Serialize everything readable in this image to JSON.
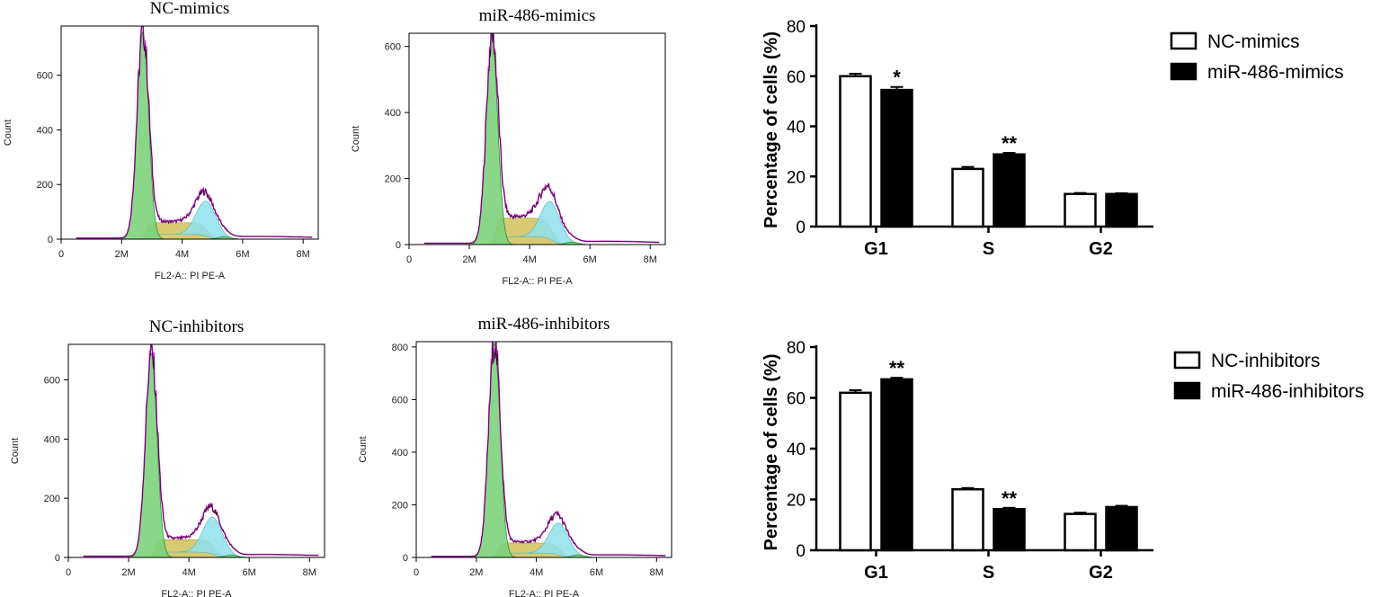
{
  "chart_data": [
    {
      "type": "histogram",
      "title": "NC-mimics",
      "xlabel": "FL2-A:: PI PE-A",
      "ylabel": "Count",
      "xticks": [
        "0",
        "2M",
        "4M",
        "6M",
        "8M"
      ],
      "xlim": [
        0,
        8.5
      ],
      "yticks": [
        0,
        200,
        400,
        600
      ],
      "ylim": [
        0,
        780
      ],
      "peaks": {
        "g1_center": 2.7,
        "g1_height": 760,
        "g2_center": 4.8,
        "g2_height": 128,
        "s_level": 60
      },
      "colors": {
        "g1": "#7dd37d",
        "s": "#cfc25a",
        "g2": "#8fe0ec",
        "envelope": "#e020e0"
      }
    },
    {
      "type": "histogram",
      "title": "miR-486-mimics",
      "xlabel": "FL2-A:: PI PE-A",
      "ylabel": "Count",
      "xticks": [
        "0",
        "2M",
        "4M",
        "6M",
        "8M"
      ],
      "xlim": [
        0,
        8.5
      ],
      "yticks": [
        0,
        200,
        400,
        600
      ],
      "ylim": [
        0,
        640
      ],
      "peaks": {
        "g1_center": 2.75,
        "g1_height": 630,
        "g2_center": 4.7,
        "g2_height": 115,
        "s_level": 80
      },
      "colors": {
        "g1": "#7dd37d",
        "s": "#cfc25a",
        "g2": "#8fe0ec",
        "envelope": "#e020e0"
      }
    },
    {
      "type": "bar",
      "categories": [
        "G1",
        "S",
        "G2"
      ],
      "series": [
        {
          "name": "NC-mimics",
          "values": [
            60,
            23,
            13
          ],
          "errors": [
            1.0,
            0.8,
            0.4
          ]
        },
        {
          "name": "miR-486-mimics",
          "values": [
            54.5,
            28.8,
            13
          ],
          "errors": [
            1.2,
            0.6,
            0.3
          ]
        }
      ],
      "annotations": [
        "",
        "*",
        "",
        "**",
        "",
        ""
      ],
      "ylabel": "Percentage of cells (%)",
      "ylim": [
        0,
        80
      ],
      "yticks": [
        0,
        20,
        40,
        60,
        80
      ],
      "legend": "top-right"
    },
    {
      "type": "histogram",
      "title": "NC-inhibitors",
      "xlabel": "FL2-A:: PI PE-A",
      "ylabel": "Count",
      "xticks": [
        "0",
        "2M",
        "4M",
        "6M",
        "8M"
      ],
      "xlim": [
        0,
        8.5
      ],
      "yticks": [
        0,
        200,
        400,
        600
      ],
      "ylim": [
        0,
        720
      ],
      "peaks": {
        "g1_center": 2.75,
        "g1_height": 690,
        "g2_center": 4.8,
        "g2_height": 125,
        "s_level": 60
      },
      "colors": {
        "g1": "#7dd37d",
        "s": "#cfc25a",
        "g2": "#8fe0ec",
        "envelope": "#e020e0"
      }
    },
    {
      "type": "histogram",
      "title": "miR-486-inhibitors",
      "xlabel": "FL2-A:: PI PE-A",
      "ylabel": "Count",
      "xticks": [
        "0",
        "2M",
        "4M",
        "6M",
        "8M"
      ],
      "xlim": [
        0,
        8.5
      ],
      "yticks": [
        0,
        200,
        400,
        600,
        800
      ],
      "ylim": [
        0,
        820
      ],
      "peaks": {
        "g1_center": 2.6,
        "g1_height": 815,
        "g2_center": 4.75,
        "g2_height": 120,
        "s_level": 55
      },
      "colors": {
        "g1": "#7dd37d",
        "s": "#cfc25a",
        "g2": "#8fe0ec",
        "envelope": "#e020e0"
      }
    },
    {
      "type": "bar",
      "categories": [
        "G1",
        "S",
        "G2"
      ],
      "series": [
        {
          "name": "NC-inhibitors",
          "values": [
            62,
            24,
            14.3
          ],
          "errors": [
            1.0,
            0.5,
            0.5
          ]
        },
        {
          "name": "miR-486-inhibitors",
          "values": [
            67.3,
            16.2,
            17
          ],
          "errors": [
            0.6,
            0.5,
            0.5
          ]
        }
      ],
      "annotations": [
        "",
        "**",
        "",
        "**",
        "",
        ""
      ],
      "ylabel": "Percentage of cells (%)",
      "ylim": [
        0,
        80
      ],
      "yticks": [
        0,
        20,
        40,
        60,
        80
      ],
      "legend": "top-right"
    }
  ]
}
